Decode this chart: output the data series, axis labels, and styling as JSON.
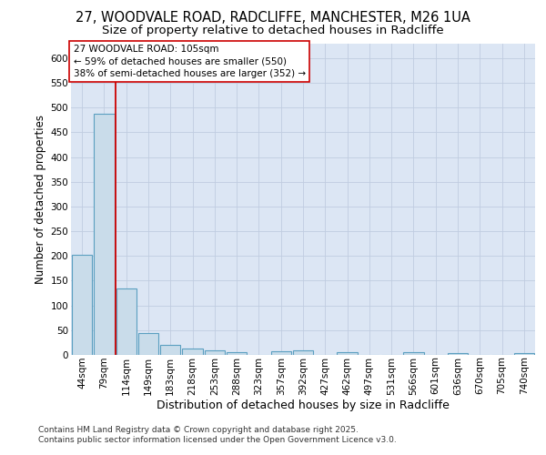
{
  "title1": "27, WOODVALE ROAD, RADCLIFFE, MANCHESTER, M26 1UA",
  "title2": "Size of property relative to detached houses in Radcliffe",
  "xlabel": "Distribution of detached houses by size in Radcliffe",
  "ylabel": "Number of detached properties",
  "footer1": "Contains HM Land Registry data © Crown copyright and database right 2025.",
  "footer2": "Contains public sector information licensed under the Open Government Licence v3.0.",
  "categories": [
    "44sqm",
    "79sqm",
    "114sqm",
    "149sqm",
    "183sqm",
    "218sqm",
    "253sqm",
    "288sqm",
    "323sqm",
    "357sqm",
    "392sqm",
    "427sqm",
    "462sqm",
    "497sqm",
    "531sqm",
    "566sqm",
    "601sqm",
    "636sqm",
    "670sqm",
    "705sqm",
    "740sqm"
  ],
  "bar_heights": [
    203,
    487,
    134,
    45,
    20,
    13,
    10,
    5,
    0,
    8,
    10,
    0,
    5,
    0,
    0,
    5,
    0,
    3,
    0,
    0,
    3
  ],
  "bar_color": "#c9dcea",
  "bar_edge_color": "#5b9fc0",
  "grid_color": "#c0cce0",
  "plot_bg_color": "#dce6f4",
  "vline_color": "#cc0000",
  "vline_x": 1.5,
  "annotation_text": "27 WOODVALE ROAD: 105sqm\n← 59% of detached houses are smaller (550)\n38% of semi-detached houses are larger (352) →",
  "ylim_max": 630,
  "yticks": [
    0,
    50,
    100,
    150,
    200,
    250,
    300,
    350,
    400,
    450,
    500,
    550,
    600
  ],
  "title_fontsize": 10.5,
  "subtitle_fontsize": 9.5,
  "ylabel_fontsize": 8.5,
  "xlabel_fontsize": 9,
  "tick_fontsize": 7.5,
  "annot_fontsize": 7.5,
  "footer_fontsize": 6.5
}
